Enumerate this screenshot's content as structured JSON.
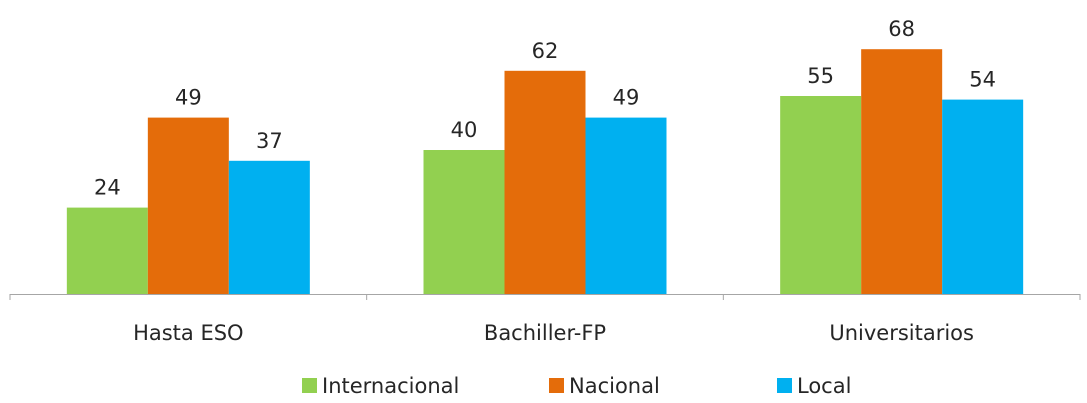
{
  "chart_data": {
    "type": "bar",
    "title": "",
    "xlabel": "",
    "ylabel": "",
    "categories": [
      "Hasta ESO",
      "Bachiller-FP",
      "Universitarios"
    ],
    "series": [
      {
        "name": "Internacional",
        "color": "#92d050",
        "values": [
          24,
          40,
          55
        ]
      },
      {
        "name": "Nacional",
        "color": "#e46c0a",
        "values": [
          49,
          62,
          68
        ]
      },
      {
        "name": "Local",
        "color": "#00b0f0",
        "values": [
          37,
          49,
          54
        ]
      }
    ],
    "ylim": [
      0,
      75
    ],
    "grid": false,
    "data_labels": true,
    "legend_position": "bottom",
    "axis_color": "#a6a6a6"
  }
}
